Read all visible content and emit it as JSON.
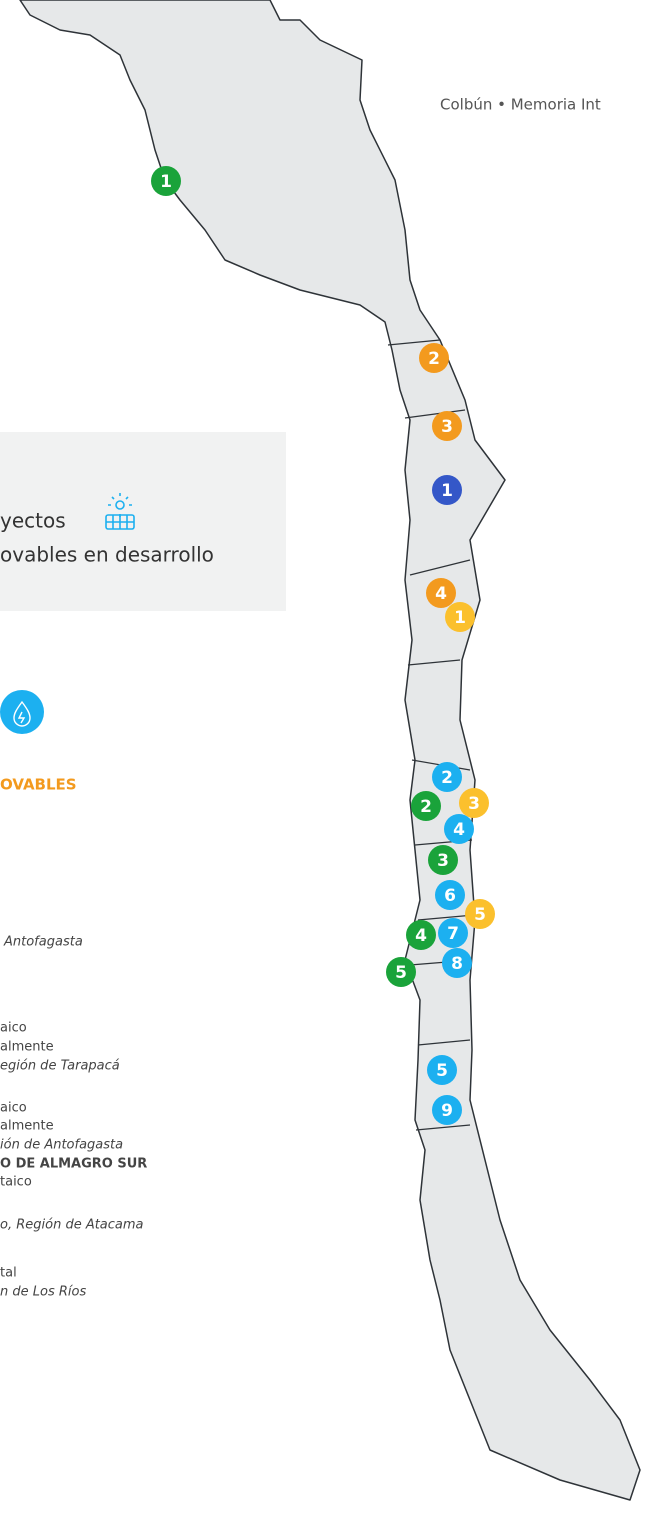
{
  "header": {
    "text": "Colbún • Memoria Int"
  },
  "panel": {
    "lines": [
      "yectos",
      "ovables en desarrollo"
    ]
  },
  "section": {
    "title": "OVABLES"
  },
  "items": [
    {
      "text": "Antofagasta",
      "style": "italic"
    },
    {
      "text": "aico",
      "style": "normal"
    },
    {
      "text": "almente",
      "style": "normal"
    },
    {
      "text": "egión de Tarapacá",
      "style": "italic"
    },
    {
      "text": "aico",
      "style": "normal"
    },
    {
      "text": "almente",
      "style": "normal"
    },
    {
      "text": "ión de Antofagasta",
      "style": "italic"
    },
    {
      "text": "O DE ALMAGRO SUR",
      "style": "bold"
    },
    {
      "text": "taico",
      "style": "normal"
    },
    {
      "text": "o, Región de Atacama",
      "style": "italic"
    },
    {
      "text": "tal",
      "style": "normal"
    },
    {
      "text": "n de Los Ríos",
      "style": "italic"
    }
  ],
  "markers": [
    {
      "label": "1",
      "color": "#1aa33a"
    },
    {
      "label": "2",
      "color": "#f39a1e"
    },
    {
      "label": "3",
      "color": "#f39a1e"
    },
    {
      "label": "1",
      "color": "#3457c8"
    },
    {
      "label": "4",
      "color": "#f39a1e"
    },
    {
      "label": "1",
      "color": "#fbc02d"
    },
    {
      "label": "2",
      "color": "#1cb0f0"
    },
    {
      "label": "3",
      "color": "#fbc02d"
    },
    {
      "label": "2",
      "color": "#1aa33a"
    },
    {
      "label": "4",
      "color": "#1cb0f0"
    },
    {
      "label": "3",
      "color": "#1aa33a"
    },
    {
      "label": "6",
      "color": "#1cb0f0"
    },
    {
      "label": "5",
      "color": "#fbc02d"
    },
    {
      "label": "4",
      "color": "#1aa33a"
    },
    {
      "label": "7",
      "color": "#1cb0f0"
    },
    {
      "label": "8",
      "color": "#1cb0f0"
    },
    {
      "label": "5",
      "color": "#1aa33a"
    },
    {
      "label": "5",
      "color": "#1cb0f0"
    },
    {
      "label": "9",
      "color": "#1cb0f0"
    }
  ]
}
